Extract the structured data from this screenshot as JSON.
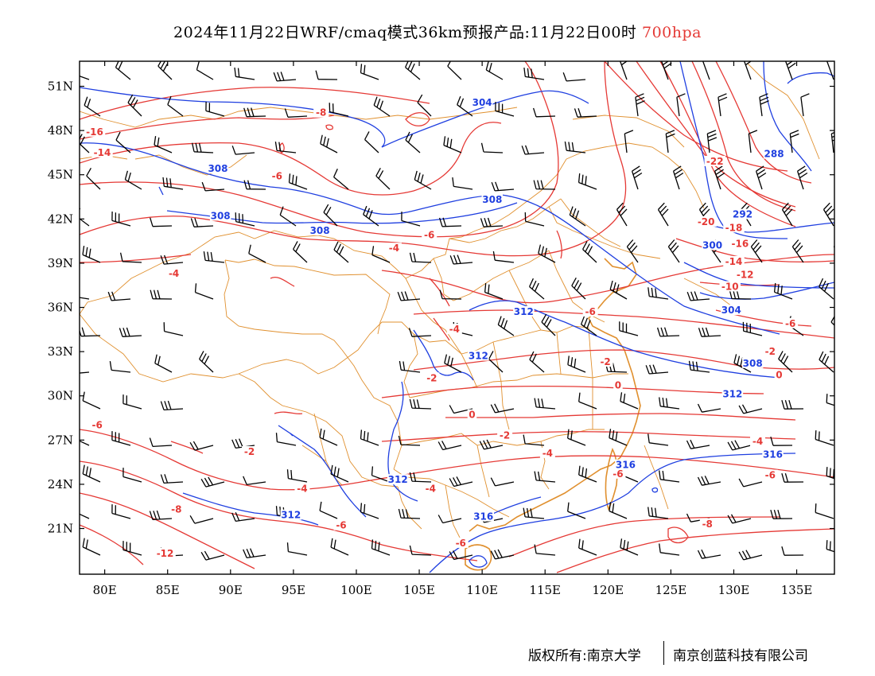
{
  "title": {
    "text": "2024年11月22日WRF/cmaq模式36km预报产品:11月22日00时",
    "level": "700hpa",
    "level_color": "#e53935"
  },
  "axes": {
    "x_labels": [
      "80E",
      "85E",
      "90E",
      "95E",
      "100E",
      "105E",
      "110E",
      "115E",
      "120E",
      "125E",
      "130E",
      "135E"
    ],
    "y_labels": [
      "51N",
      "48N",
      "45N",
      "42N",
      "39N",
      "36N",
      "33N",
      "30N",
      "27N",
      "24N",
      "21N"
    ]
  },
  "temperature_labels": [
    {
      "text": "-16",
      "lon": 79.2,
      "lat": 47.8
    },
    {
      "text": "-14",
      "lon": 79.8,
      "lat": 46.4
    },
    {
      "text": "-8",
      "lon": 97.2,
      "lat": 49.1
    },
    {
      "text": "-6",
      "lon": 93.7,
      "lat": 44.8
    },
    {
      "text": "-6",
      "lon": 105.8,
      "lat": 40.8
    },
    {
      "text": "-4",
      "lon": 103.0,
      "lat": 39.9
    },
    {
      "text": "-4",
      "lon": 85.5,
      "lat": 38.2
    },
    {
      "text": "-6",
      "lon": 118.6,
      "lat": 35.6
    },
    {
      "text": "-4",
      "lon": 107.8,
      "lat": 34.4
    },
    {
      "text": "-2",
      "lon": 106.0,
      "lat": 31.1
    },
    {
      "text": "-2",
      "lon": 119.8,
      "lat": 32.2
    },
    {
      "text": "0",
      "lon": 120.8,
      "lat": 30.6
    },
    {
      "text": "0",
      "lon": 109.2,
      "lat": 28.6
    },
    {
      "text": "-2",
      "lon": 111.8,
      "lat": 27.2
    },
    {
      "text": "-2",
      "lon": 91.5,
      "lat": 26.1
    },
    {
      "text": "-4",
      "lon": 115.2,
      "lat": 26.0
    },
    {
      "text": "-4",
      "lon": 95.7,
      "lat": 23.6
    },
    {
      "text": "-4",
      "lon": 105.9,
      "lat": 23.6
    },
    {
      "text": "-6",
      "lon": 79.4,
      "lat": 27.9
    },
    {
      "text": "-6",
      "lon": 98.8,
      "lat": 21.1
    },
    {
      "text": "-6",
      "lon": 108.3,
      "lat": 19.9
    },
    {
      "text": "-6",
      "lon": 120.8,
      "lat": 24.6
    },
    {
      "text": "-6",
      "lon": 132.9,
      "lat": 24.5
    },
    {
      "text": "-8",
      "lon": 85.7,
      "lat": 22.2
    },
    {
      "text": "-8",
      "lon": 127.9,
      "lat": 21.2
    },
    {
      "text": "-12",
      "lon": 84.8,
      "lat": 19.2
    },
    {
      "text": "-4",
      "lon": 131.9,
      "lat": 26.8
    },
    {
      "text": "-6",
      "lon": 134.5,
      "lat": 34.8
    },
    {
      "text": "-2",
      "lon": 132.9,
      "lat": 32.9
    },
    {
      "text": "0",
      "lon": 133.6,
      "lat": 31.3
    },
    {
      "text": "-22",
      "lon": 128.5,
      "lat": 45.8
    },
    {
      "text": "-20",
      "lon": 127.8,
      "lat": 41.7
    },
    {
      "text": "-18",
      "lon": 130.0,
      "lat": 41.3
    },
    {
      "text": "-16",
      "lon": 130.5,
      "lat": 40.2
    },
    {
      "text": "-14",
      "lon": 130.0,
      "lat": 39.0
    },
    {
      "text": "-12",
      "lon": 130.9,
      "lat": 38.1
    },
    {
      "text": "-10",
      "lon": 129.7,
      "lat": 37.3
    }
  ],
  "height_labels": [
    {
      "text": "304",
      "lon": 110.0,
      "lat": 49.8
    },
    {
      "text": "308",
      "lon": 89.0,
      "lat": 45.3
    },
    {
      "text": "308",
      "lon": 89.2,
      "lat": 42.1
    },
    {
      "text": "308",
      "lon": 97.1,
      "lat": 41.1
    },
    {
      "text": "308",
      "lon": 110.8,
      "lat": 43.2
    },
    {
      "text": "312",
      "lon": 113.3,
      "lat": 35.6
    },
    {
      "text": "312",
      "lon": 109.7,
      "lat": 32.6
    },
    {
      "text": "312",
      "lon": 103.3,
      "lat": 24.2
    },
    {
      "text": "312",
      "lon": 129.9,
      "lat": 30.0
    },
    {
      "text": "312",
      "lon": 94.8,
      "lat": 21.8
    },
    {
      "text": "316",
      "lon": 110.1,
      "lat": 21.7
    },
    {
      "text": "316",
      "lon": 121.4,
      "lat": 25.2
    },
    {
      "text": "316",
      "lon": 133.1,
      "lat": 25.9
    },
    {
      "text": "308",
      "lon": 131.5,
      "lat": 32.1
    },
    {
      "text": "304",
      "lon": 129.8,
      "lat": 35.7
    },
    {
      "text": "300",
      "lon": 128.3,
      "lat": 40.1
    },
    {
      "text": "292",
      "lon": 130.7,
      "lat": 42.2
    },
    {
      "text": "288",
      "lon": 133.2,
      "lat": 46.3
    }
  ],
  "footer": {
    "copyright": "版权所有:南京大学",
    "company": "南京创蓝科技有限公司"
  }
}
